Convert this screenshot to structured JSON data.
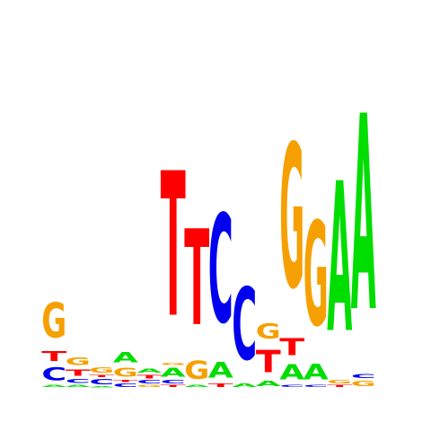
{
  "chart_data": {
    "type": "sequence-logo",
    "title": "",
    "xlabel": "",
    "ylabel": "",
    "alphabet": [
      "A",
      "C",
      "G",
      "T"
    ],
    "colors": {
      "A": "#00dd00",
      "C": "#0000ee",
      "G": "#f5a000",
      "T": "#ff0000"
    },
    "ylim": [
      0,
      2
    ],
    "positions": [
      [
        [
          "A",
          0.02
        ],
        [
          "C",
          0.12
        ],
        [
          "T",
          0.09
        ],
        [
          "G",
          0.33
        ]
      ],
      [
        [
          "A",
          0.02
        ],
        [
          "C",
          0.04
        ],
        [
          "T",
          0.06
        ],
        [
          "G",
          0.07
        ]
      ],
      [
        [
          "A",
          0.01
        ],
        [
          "C",
          0.05
        ],
        [
          "T",
          0.02
        ],
        [
          "G",
          0.05
        ]
      ],
      [
        [
          "C",
          0.03
        ],
        [
          "T",
          0.02
        ],
        [
          "G",
          0.08
        ],
        [
          "A",
          0.1
        ]
      ],
      [
        [
          "G",
          0.02
        ],
        [
          "C",
          0.03
        ],
        [
          "T",
          0.03
        ],
        [
          "A",
          0.04
        ]
      ],
      [
        [
          "T",
          0.02
        ],
        [
          "C",
          0.03
        ],
        [
          "A",
          0.08
        ],
        [
          "G",
          0.02
        ],
        [
          "T",
          1.36
        ]
      ],
      [
        [
          "A",
          0.02
        ],
        [
          "G",
          0.17
        ],
        [
          "T",
          0.9
        ]
      ],
      [
        [
          "T",
          0.03
        ],
        [
          "A",
          0.15
        ],
        [
          "C",
          1.02
        ]
      ],
      [
        [
          "A",
          0.03
        ],
        [
          "C",
          0.68
        ]
      ],
      [
        [
          "A",
          0.05
        ],
        [
          "T",
          0.21
        ],
        [
          "G",
          0.14
        ]
      ],
      [
        [
          "C",
          0.02
        ],
        [
          "A",
          0.14
        ],
        [
          "T",
          0.16
        ],
        [
          "G",
          1.35
        ]
      ],
      [
        [
          "C",
          0.02
        ],
        [
          "A",
          0.15
        ],
        [
          "G",
          0.98
        ]
      ],
      [
        [
          "T",
          0.02
        ],
        [
          "G",
          0.03
        ],
        [
          "A",
          1.41
        ]
      ],
      [
        [
          "G",
          0.05
        ],
        [
          "C",
          0.04
        ],
        [
          "A",
          1.84
        ]
      ]
    ]
  }
}
